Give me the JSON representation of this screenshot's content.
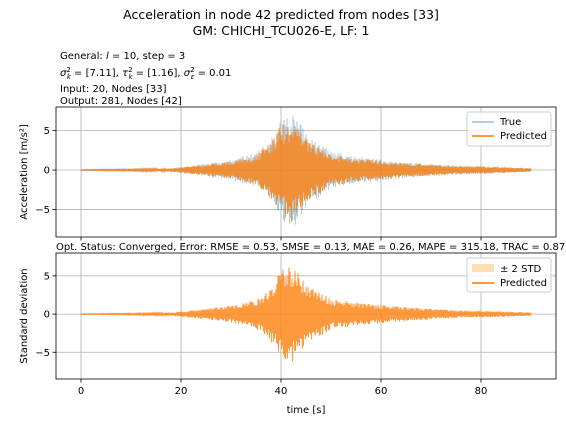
{
  "figure": {
    "title_line1": "Acceleration in node 42 predicted from nodes [33]",
    "title_line2": "GM: CHICHI_TCU026-E, LF: 1",
    "info": {
      "general_prefix": "General: ",
      "general_l": "l",
      "general_suffix": " = 10, step = 3",
      "sigma_k_value": " = [7.11], ",
      "tau_k_value": " = [1.16], ",
      "sigma_e_value": " = 0.01",
      "input": "Input: 20, Nodes [33]",
      "output": "Output: 281, Nodes [42]"
    },
    "status": "Opt. Status: Converged, Error: RMSE = 0.53, SMSE = 0.13, MAE = 0.26, MAPE = 315.18, TRAC = 0.87"
  },
  "colors": {
    "true_series": "#1f77b4",
    "predicted_series": "#ff7f0e",
    "std_band": "#ffe0b2",
    "grid": "#b0b0b0",
    "legend_border": "#cccccc"
  },
  "chart_data": [
    {
      "type": "line",
      "ylabel": "Acceleration [m/s²]",
      "xlim": [
        -5,
        95
      ],
      "ylim": [
        -8.5,
        8.0
      ],
      "yticks": [
        -5,
        0,
        5
      ],
      "xticks": [
        0,
        20,
        40,
        60,
        80
      ],
      "show_xticklabels": false,
      "grid": true,
      "legend_position": "upper right",
      "series": [
        {
          "name": "True",
          "style": "line",
          "alpha": 0.35,
          "envelope_x": [
            0,
            10,
            18,
            20,
            25,
            30,
            35,
            38,
            40,
            42,
            44,
            46,
            50,
            55,
            60,
            65,
            70,
            75,
            80,
            85,
            90
          ],
          "envelope_max": [
            0.05,
            0.1,
            0.2,
            0.4,
            0.8,
            1.3,
            2.2,
            4.0,
            6.5,
            7.3,
            5.8,
            4.2,
            2.4,
            1.7,
            1.4,
            1.0,
            0.8,
            0.6,
            0.5,
            0.4,
            0.25
          ],
          "envelope_min": [
            -0.05,
            -0.1,
            -0.2,
            -0.4,
            -0.8,
            -1.3,
            -2.2,
            -4.0,
            -6.3,
            -7.8,
            -6.0,
            -4.2,
            -2.4,
            -1.7,
            -1.4,
            -1.0,
            -0.8,
            -0.6,
            -0.5,
            -0.4,
            -0.25
          ]
        },
        {
          "name": "Predicted",
          "style": "line",
          "alpha": 0.8,
          "envelope_x": [
            0,
            10,
            18,
            20,
            25,
            30,
            35,
            38,
            40,
            42,
            44,
            46,
            50,
            55,
            60,
            65,
            70,
            75,
            80,
            85,
            90
          ],
          "envelope_max": [
            0.04,
            0.08,
            0.18,
            0.35,
            0.7,
            1.1,
            1.9,
            3.6,
            5.8,
            6.4,
            5.0,
            3.6,
            2.0,
            1.5,
            1.2,
            0.9,
            0.7,
            0.5,
            0.45,
            0.35,
            0.2
          ],
          "envelope_min": [
            -0.04,
            -0.08,
            -0.18,
            -0.35,
            -0.7,
            -1.1,
            -1.9,
            -3.6,
            -5.8,
            -6.8,
            -5.3,
            -3.7,
            -2.0,
            -1.5,
            -1.2,
            -0.9,
            -0.7,
            -0.5,
            -0.45,
            -0.35,
            -0.2
          ]
        }
      ]
    },
    {
      "type": "line",
      "ylabel": "Standard deviation",
      "xlabel": "time [s]",
      "xlim": [
        -5,
        95
      ],
      "ylim": [
        -8.5,
        8.0
      ],
      "yticks": [
        -5,
        0,
        5
      ],
      "xticks": [
        0,
        20,
        40,
        60,
        80
      ],
      "show_xticklabels": true,
      "grid": true,
      "legend_position": "upper right",
      "series": [
        {
          "name": "± 2 STD",
          "style": "band",
          "alpha": 1.0,
          "envelope_x": [
            0,
            90
          ],
          "envelope_max": [
            0.02,
            0.02
          ],
          "envelope_min": [
            -0.02,
            -0.02
          ]
        },
        {
          "name": "Predicted",
          "style": "line",
          "alpha": 0.8,
          "envelope_x": [
            0,
            10,
            18,
            20,
            25,
            30,
            35,
            38,
            40,
            42,
            44,
            46,
            50,
            55,
            60,
            65,
            70,
            75,
            80,
            85,
            90
          ],
          "envelope_max": [
            0.04,
            0.08,
            0.18,
            0.35,
            0.7,
            1.1,
            1.9,
            3.6,
            5.8,
            6.4,
            5.0,
            3.6,
            2.0,
            1.5,
            1.2,
            0.9,
            0.7,
            0.5,
            0.45,
            0.35,
            0.2
          ],
          "envelope_min": [
            -0.04,
            -0.08,
            -0.18,
            -0.35,
            -0.7,
            -1.1,
            -1.9,
            -3.6,
            -5.8,
            -6.8,
            -5.3,
            -3.7,
            -2.0,
            -1.5,
            -1.2,
            -0.9,
            -0.7,
            -0.5,
            -0.45,
            -0.35,
            -0.2
          ]
        }
      ]
    }
  ]
}
